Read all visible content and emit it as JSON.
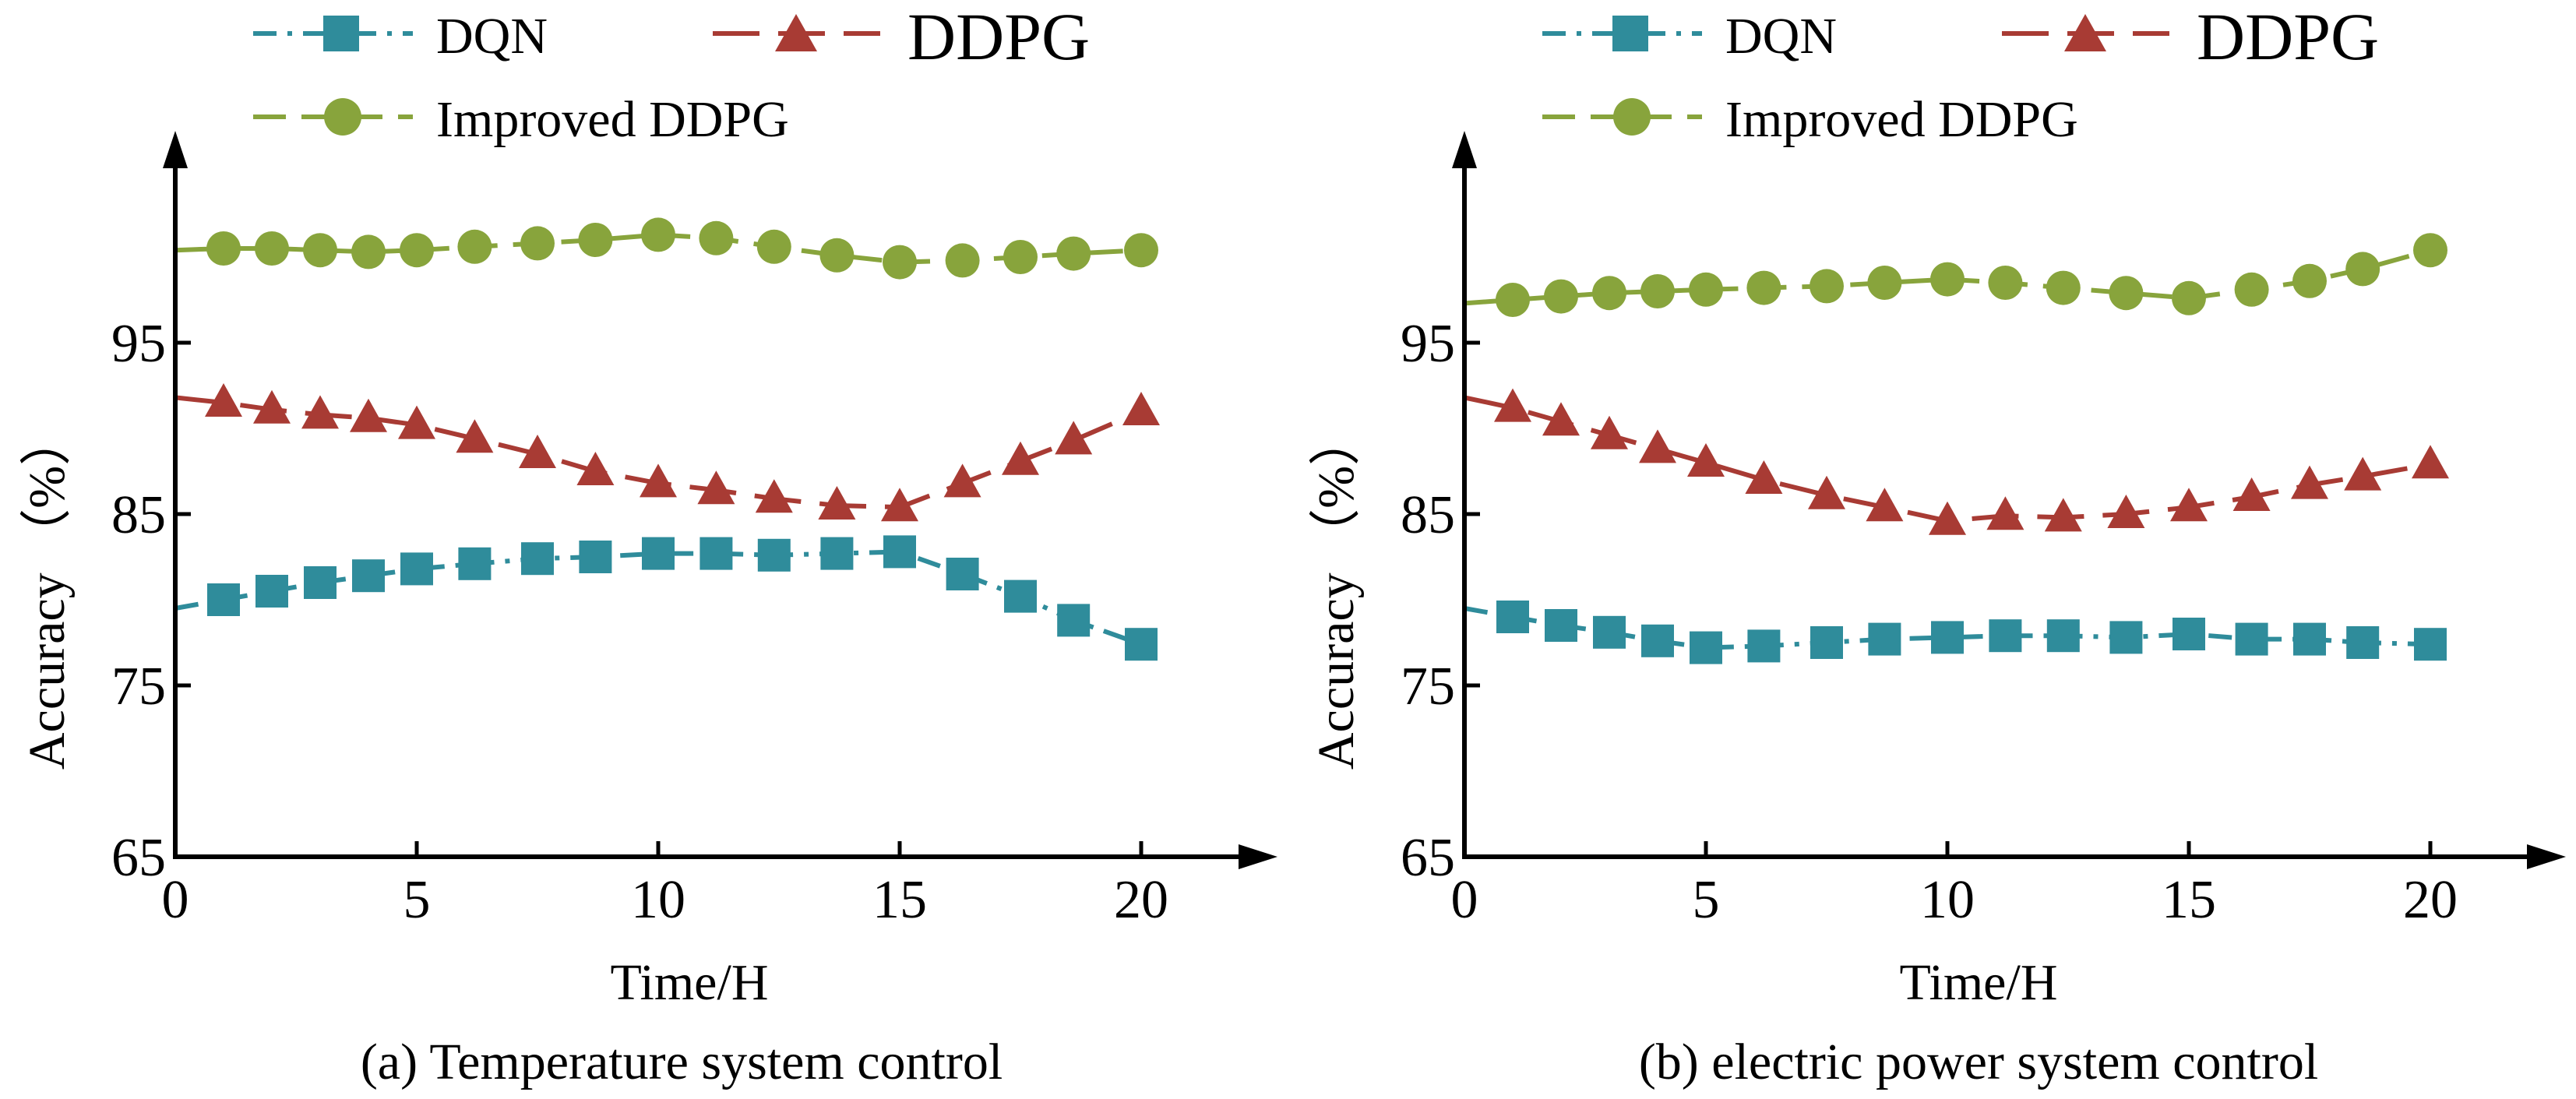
{
  "chart_data": [
    {
      "type": "line",
      "caption": "(a) Temperature system control",
      "xlabel": "Time/H",
      "ylabel": "Accuracy （%）",
      "xlim": [
        0,
        20
      ],
      "ylim": [
        65,
        105
      ],
      "xticks": [
        "0",
        "5",
        "10",
        "15",
        "20"
      ],
      "yticks": [
        "65",
        "75",
        "85",
        "95"
      ],
      "series": [
        {
          "name": "DQN",
          "color": "#2f8c9b",
          "marker": "square",
          "dash": "dashdot",
          "x": [
            0,
            1,
            2,
            3,
            4,
            5,
            6.2,
            7.5,
            8.7,
            10,
            11.2,
            12.4,
            13.7,
            15,
            16.3,
            17.5,
            18.6,
            20
          ],
          "y": [
            79.5,
            80.0,
            80.5,
            81.0,
            81.4,
            81.8,
            82.1,
            82.4,
            82.5,
            82.7,
            82.7,
            82.6,
            82.7,
            82.8,
            81.5,
            80.2,
            78.8,
            77.4
          ]
        },
        {
          "name": "DDPG",
          "color": "#a83b34",
          "marker": "triangle",
          "dash": "longdash",
          "x": [
            0,
            1,
            2,
            3,
            4,
            5,
            6.2,
            7.5,
            8.7,
            10,
            11.2,
            12.4,
            13.7,
            15,
            16.3,
            17.5,
            18.6,
            20
          ],
          "y": [
            91.8,
            91.5,
            91.1,
            90.8,
            90.6,
            90.2,
            89.4,
            88.5,
            87.5,
            86.8,
            86.4,
            85.9,
            85.5,
            85.4,
            86.8,
            88.1,
            89.3,
            91.0
          ]
        },
        {
          "name": "Improved DDPG",
          "color": "#88a43c",
          "marker": "circle",
          "dash": "dash",
          "x": [
            0,
            1,
            2,
            3,
            4,
            5,
            6.2,
            7.5,
            8.7,
            10,
            11.2,
            12.4,
            13.7,
            15,
            16.3,
            17.5,
            18.6,
            20
          ],
          "y": [
            100.4,
            100.5,
            100.5,
            100.4,
            100.3,
            100.4,
            100.6,
            100.8,
            101.0,
            101.3,
            101.1,
            100.6,
            100.1,
            99.7,
            99.8,
            100.0,
            100.2,
            100.4
          ]
        }
      ]
    },
    {
      "type": "line",
      "caption": "(b)  electric power system control",
      "xlabel": "Time/H",
      "ylabel": "Accuracy （%）",
      "xlim": [
        0,
        20
      ],
      "ylim": [
        65,
        105
      ],
      "xticks": [
        "0",
        "5",
        "10",
        "15",
        "20"
      ],
      "yticks": [
        "65",
        "75",
        "85",
        "95"
      ],
      "series": [
        {
          "name": "DQN",
          "color": "#2f8c9b",
          "marker": "square",
          "dash": "dashdot",
          "x": [
            0,
            1,
            2,
            3,
            4,
            5,
            6.2,
            7.5,
            8.7,
            10,
            11.2,
            12.4,
            13.7,
            15,
            16.3,
            17.5,
            18.6,
            20
          ],
          "y": [
            79.5,
            79.0,
            78.5,
            78.1,
            77.6,
            77.2,
            77.3,
            77.5,
            77.7,
            77.8,
            77.9,
            77.9,
            77.8,
            78.0,
            77.7,
            77.7,
            77.5,
            77.4
          ]
        },
        {
          "name": "DDPG",
          "color": "#a83b34",
          "marker": "triangle",
          "dash": "longdash",
          "x": [
            0,
            1,
            2,
            3,
            4,
            5,
            6.2,
            7.5,
            8.7,
            10,
            11.2,
            12.4,
            13.7,
            15,
            16.3,
            17.5,
            18.6,
            20
          ],
          "y": [
            91.8,
            91.2,
            90.4,
            89.6,
            88.8,
            88.0,
            87.0,
            86.1,
            85.4,
            84.6,
            84.9,
            84.8,
            85.0,
            85.4,
            86.0,
            86.7,
            87.2,
            87.9
          ]
        },
        {
          "name": "Improved DDPG",
          "color": "#88a43c",
          "marker": "circle",
          "dash": "dash",
          "x": [
            0,
            1,
            2,
            3,
            4,
            5,
            6.2,
            7.5,
            8.7,
            10,
            11.2,
            12.4,
            13.7,
            15,
            16.3,
            17.5,
            18.6,
            20
          ],
          "y": [
            97.3,
            97.5,
            97.7,
            97.9,
            98.0,
            98.1,
            98.2,
            98.3,
            98.5,
            98.7,
            98.5,
            98.2,
            97.9,
            97.6,
            98.1,
            98.6,
            99.3,
            100.4
          ]
        }
      ]
    }
  ]
}
